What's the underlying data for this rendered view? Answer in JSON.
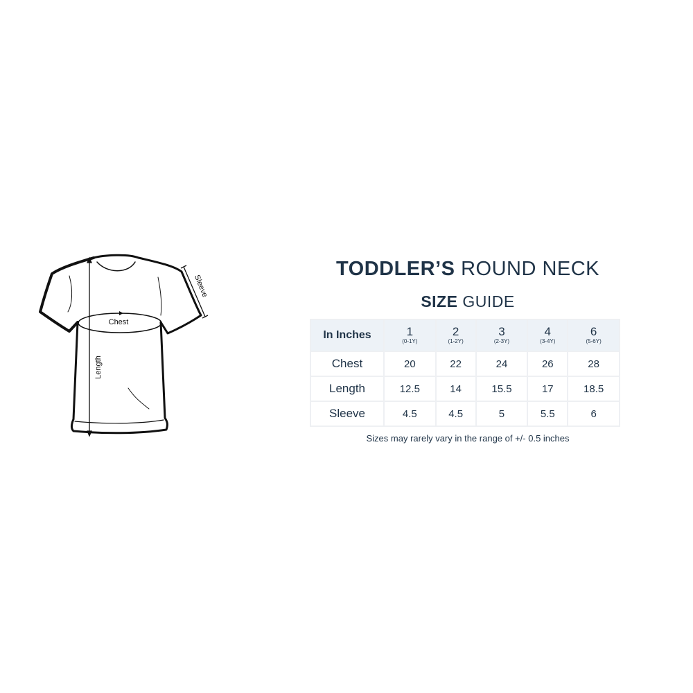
{
  "title": {
    "bold": "TODDLER’S",
    "light": "ROUND NECK"
  },
  "subtitle": {
    "bold": "SIZE",
    "light": "GUIDE"
  },
  "diagram": {
    "chest_label": "Chest",
    "length_label": "Length",
    "sleeve_label": "Sleeve"
  },
  "table": {
    "corner": "In Inches",
    "sizes": [
      {
        "size": "1",
        "age": "(0-1Y)"
      },
      {
        "size": "2",
        "age": "(1-2Y)"
      },
      {
        "size": "3",
        "age": "(2-3Y)"
      },
      {
        "size": "4",
        "age": "(3-4Y)"
      },
      {
        "size": "6",
        "age": "(5-6Y)"
      }
    ],
    "rows": [
      {
        "label": "Chest",
        "values": [
          "20",
          "22",
          "24",
          "26",
          "28"
        ]
      },
      {
        "label": "Length",
        "values": [
          "12.5",
          "14",
          "15.5",
          "17",
          "18.5"
        ]
      },
      {
        "label": "Sleeve",
        "values": [
          "4.5",
          "4.5",
          "5",
          "5.5",
          "6"
        ]
      }
    ]
  },
  "note": "Sizes may rarely vary in the range of +/- 0.5 inches",
  "colors": {
    "text": "#1f3347",
    "header_bg": "#edf2f7",
    "border": "#eef0f3"
  }
}
